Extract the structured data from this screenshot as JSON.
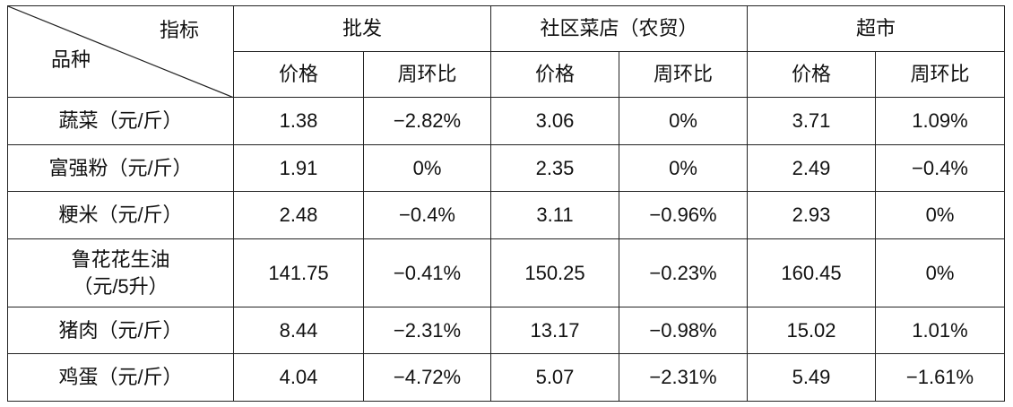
{
  "header": {
    "corner_top": "指标",
    "corner_bottom": "品种",
    "groups": [
      "批发",
      "社区菜店（农贸）",
      "超市"
    ],
    "subheaders": [
      "价格",
      "周环比",
      "价格",
      "周环比",
      "价格",
      "周环比"
    ]
  },
  "table": {
    "rows": [
      {
        "name": [
          "蔬菜（元/斤）"
        ],
        "cells": [
          "1.38",
          "−2.82%",
          "3.06",
          "0%",
          "3.71",
          "1.09%"
        ]
      },
      {
        "name": [
          "富强粉（元/斤）"
        ],
        "cells": [
          "1.91",
          "0%",
          "2.35",
          "0%",
          "2.49",
          "−0.4%"
        ]
      },
      {
        "name": [
          "粳米（元/斤）"
        ],
        "cells": [
          "2.48",
          "−0.4%",
          "3.11",
          "−0.96%",
          "2.93",
          "0%"
        ]
      },
      {
        "name": [
          "鲁花花生油",
          "（元/5升）"
        ],
        "cells": [
          "141.75",
          "−0.41%",
          "150.25",
          "−0.23%",
          "160.45",
          "0%"
        ]
      },
      {
        "name": [
          "猪肉（元/斤）"
        ],
        "cells": [
          "8.44",
          "−2.31%",
          "13.17",
          "−0.98%",
          "15.02",
          "1.01%"
        ]
      },
      {
        "name": [
          "鸡蛋（元/斤）"
        ],
        "cells": [
          "4.04",
          "−4.72%",
          "5.07",
          "−2.31%",
          "5.49",
          "−1.61%"
        ]
      }
    ]
  }
}
